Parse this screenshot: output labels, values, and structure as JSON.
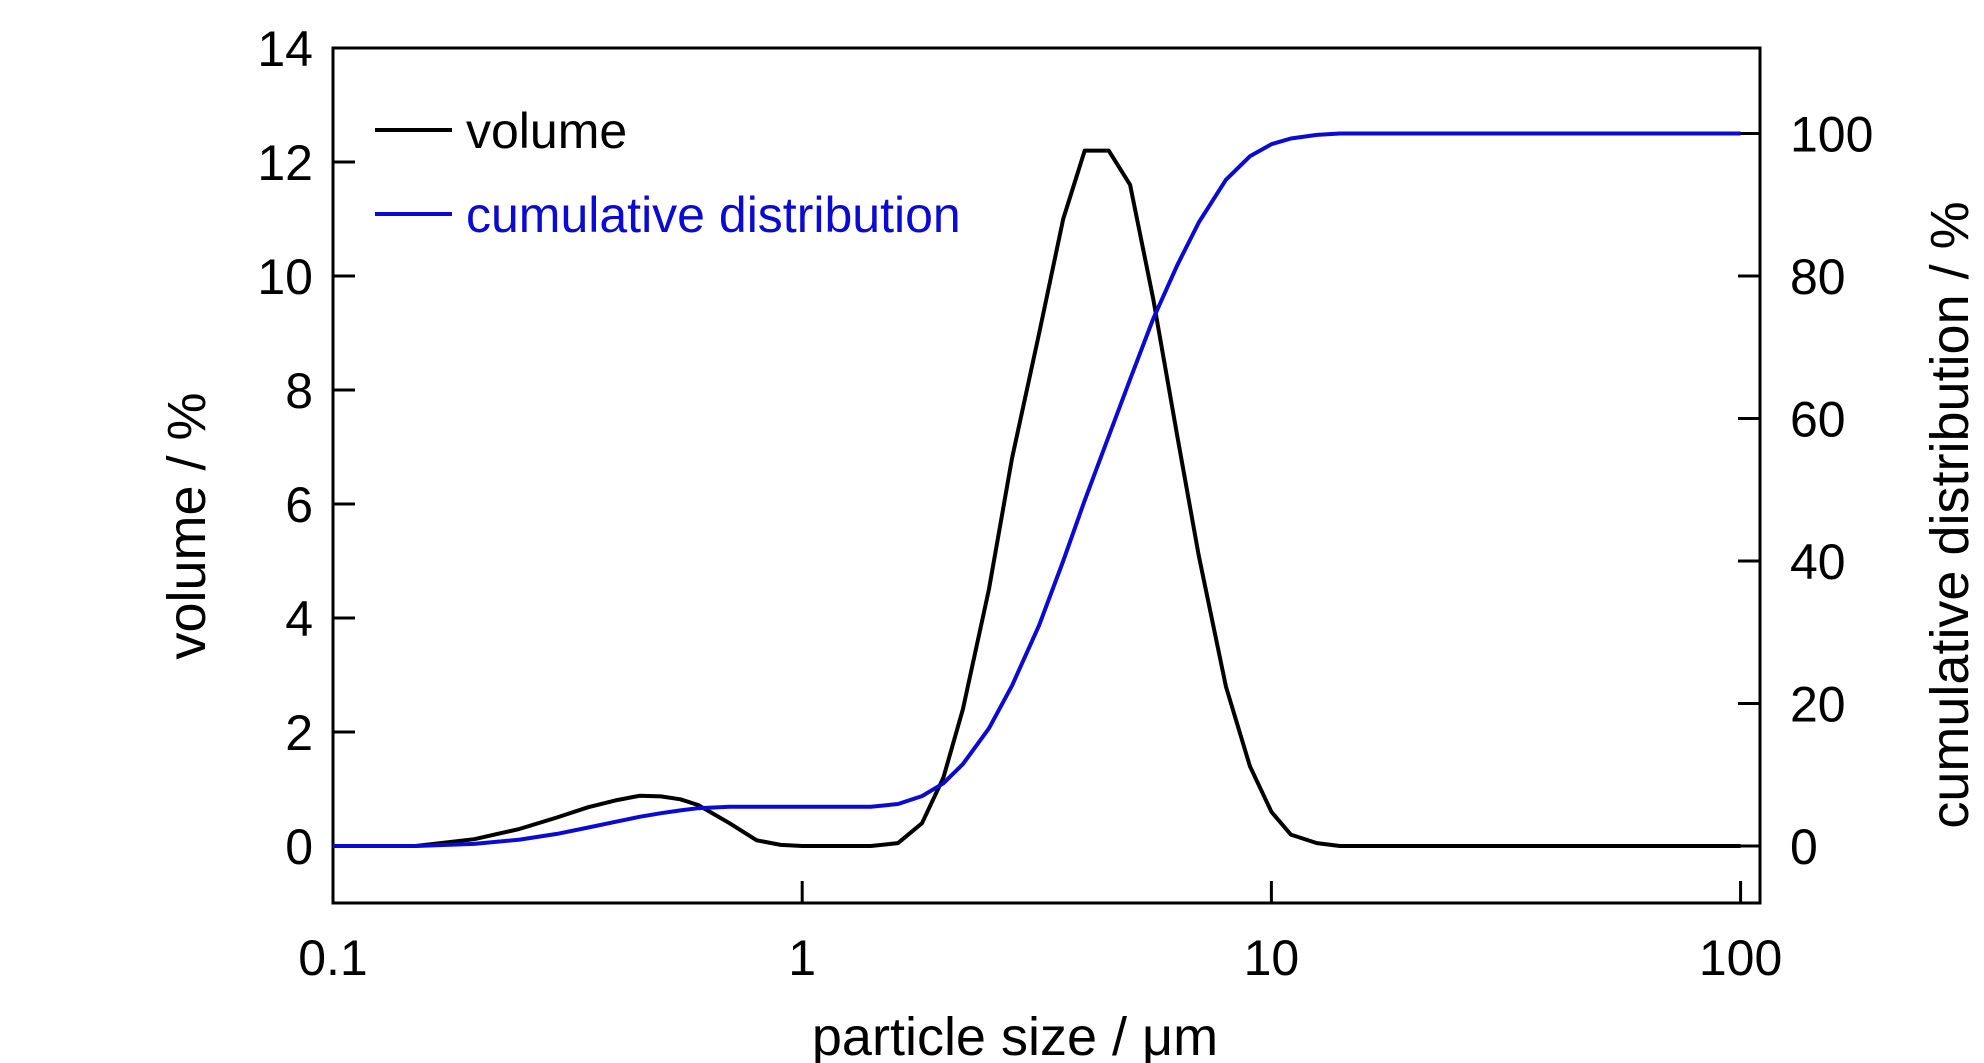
{
  "chart_data": {
    "type": "line",
    "x_scale": "log",
    "xlabel": "particle size / μm",
    "ylabel": "volume / %",
    "y2label": "cumulative distribution / %",
    "xlim": [
      0.1,
      110
    ],
    "ylim": [
      -1,
      14
    ],
    "y2lim": [
      -8,
      112
    ],
    "x_ticks": [
      0.1,
      1,
      10,
      100
    ],
    "x_tick_labels": [
      "0.1",
      "1",
      "10",
      "100"
    ],
    "y_ticks": [
      0,
      2,
      4,
      6,
      8,
      10,
      12,
      14
    ],
    "y_tick_labels": [
      "0",
      "2",
      "4",
      "6",
      "8",
      "10",
      "12",
      "14"
    ],
    "y2_ticks": [
      0,
      20,
      40,
      60,
      80,
      100
    ],
    "y2_tick_labels": [
      "0",
      "20",
      "40",
      "60",
      "80",
      "100"
    ],
    "grid": false,
    "legend_position": "top-left",
    "colors": {
      "volume": "#000000",
      "cumulative": "#0a0ad2",
      "axis": "#000000"
    },
    "series": [
      {
        "name": "volume",
        "axis": "left",
        "x": [
          0.1,
          0.15,
          0.2,
          0.25,
          0.3,
          0.35,
          0.4,
          0.45,
          0.5,
          0.55,
          0.6,
          0.7,
          0.8,
          0.9,
          1.0,
          1.2,
          1.4,
          1.6,
          1.8,
          2.0,
          2.2,
          2.5,
          2.8,
          3.2,
          3.6,
          4.0,
          4.5,
          5.0,
          5.6,
          6.3,
          7.0,
          8.0,
          9.0,
          10.0,
          11.0,
          12.5,
          14.0,
          16.0,
          20.0,
          30.0,
          50.0,
          100.0
        ],
        "y": [
          0.0,
          0.0,
          0.12,
          0.3,
          0.5,
          0.68,
          0.8,
          0.88,
          0.87,
          0.82,
          0.72,
          0.4,
          0.1,
          0.02,
          0.0,
          0.0,
          0.0,
          0.05,
          0.4,
          1.2,
          2.4,
          4.5,
          6.8,
          9.0,
          11.0,
          12.2,
          12.2,
          11.6,
          9.6,
          7.2,
          5.1,
          2.8,
          1.4,
          0.6,
          0.2,
          0.05,
          0.0,
          0.0,
          0.0,
          0.0,
          0.0,
          0.0
        ]
      },
      {
        "name": "cumulative distribution",
        "axis": "right",
        "x": [
          0.1,
          0.15,
          0.2,
          0.25,
          0.3,
          0.35,
          0.4,
          0.45,
          0.5,
          0.55,
          0.6,
          0.7,
          0.8,
          0.9,
          1.0,
          1.2,
          1.4,
          1.6,
          1.8,
          2.0,
          2.2,
          2.5,
          2.8,
          3.2,
          3.6,
          4.0,
          4.5,
          5.0,
          5.6,
          6.3,
          7.0,
          8.0,
          9.0,
          10.0,
          11.0,
          12.5,
          14.0,
          16.0,
          20.0,
          30.0,
          50.0,
          100.0
        ],
        "y": [
          0.0,
          0.0,
          0.3,
          0.9,
          1.7,
          2.6,
          3.4,
          4.1,
          4.6,
          5.0,
          5.3,
          5.5,
          5.5,
          5.5,
          5.5,
          5.5,
          5.5,
          5.9,
          7.0,
          8.8,
          11.5,
          16.5,
          22.5,
          31.0,
          40.0,
          48.5,
          57.5,
          65.5,
          74.0,
          81.5,
          87.5,
          93.5,
          96.8,
          98.5,
          99.3,
          99.8,
          100.0,
          100.0,
          100.0,
          100.0,
          100.0,
          100.0
        ]
      }
    ]
  }
}
